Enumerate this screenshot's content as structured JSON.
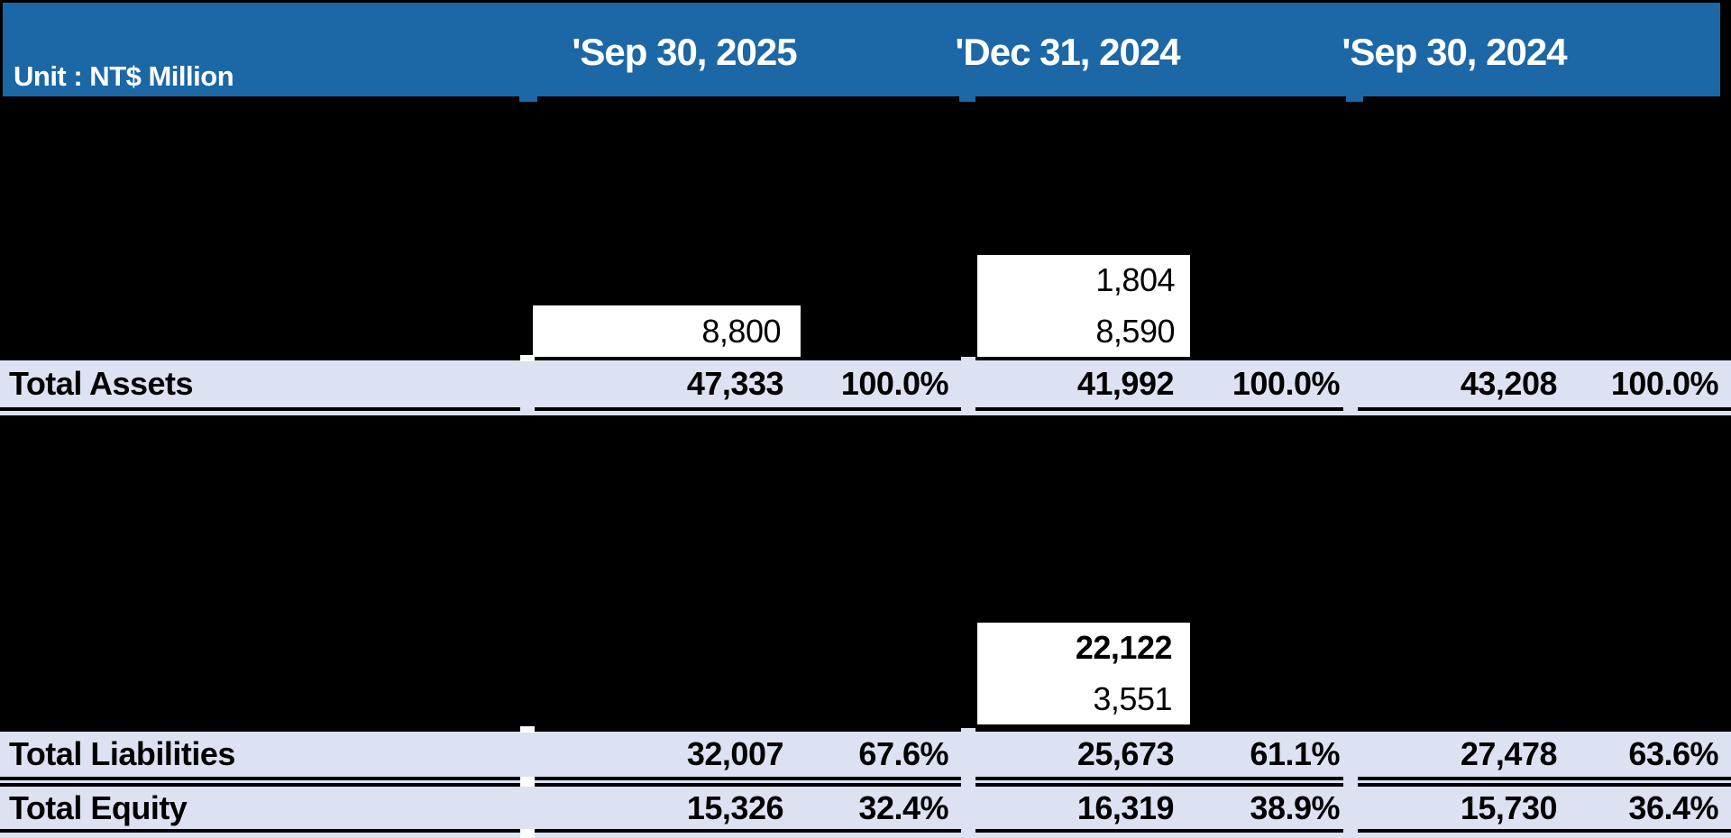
{
  "header": {
    "unit_label": "Unit : NT$ Million",
    "column_headers": [
      "'Sep 30, 2025",
      "'Dec 31, 2024",
      "'Sep 30, 2024"
    ]
  },
  "visible_cells": {
    "sep_30_2025": {
      "assets_detail": [
        "8,800"
      ]
    },
    "dec_31_2024": {
      "assets_detail": [
        "1,804",
        "8,590"
      ],
      "liabilities_detail": [
        "22,122",
        "3,551"
      ]
    }
  },
  "totals": [
    {
      "label": "Total Assets",
      "cells": [
        "47,333",
        "100.0%",
        "41,992",
        "100.0%",
        "43,208",
        "100.0%"
      ]
    },
    {
      "label": "Total Liabilities",
      "cells": [
        "32,007",
        "67.6%",
        "25,673",
        "61.1%",
        "27,478",
        "63.6%"
      ]
    },
    {
      "label": "Total Equity",
      "cells": [
        "15,326",
        "32.4%",
        "16,319",
        "38.9%",
        "15,730",
        "36.4%"
      ]
    }
  ],
  "colors": {
    "header-blue": "#1c67a6",
    "band-fill": "#dce2f2",
    "cell-fill": "#ffffff",
    "background": "#000000",
    "header-text": "#ffffff",
    "body-text": "#000000"
  }
}
